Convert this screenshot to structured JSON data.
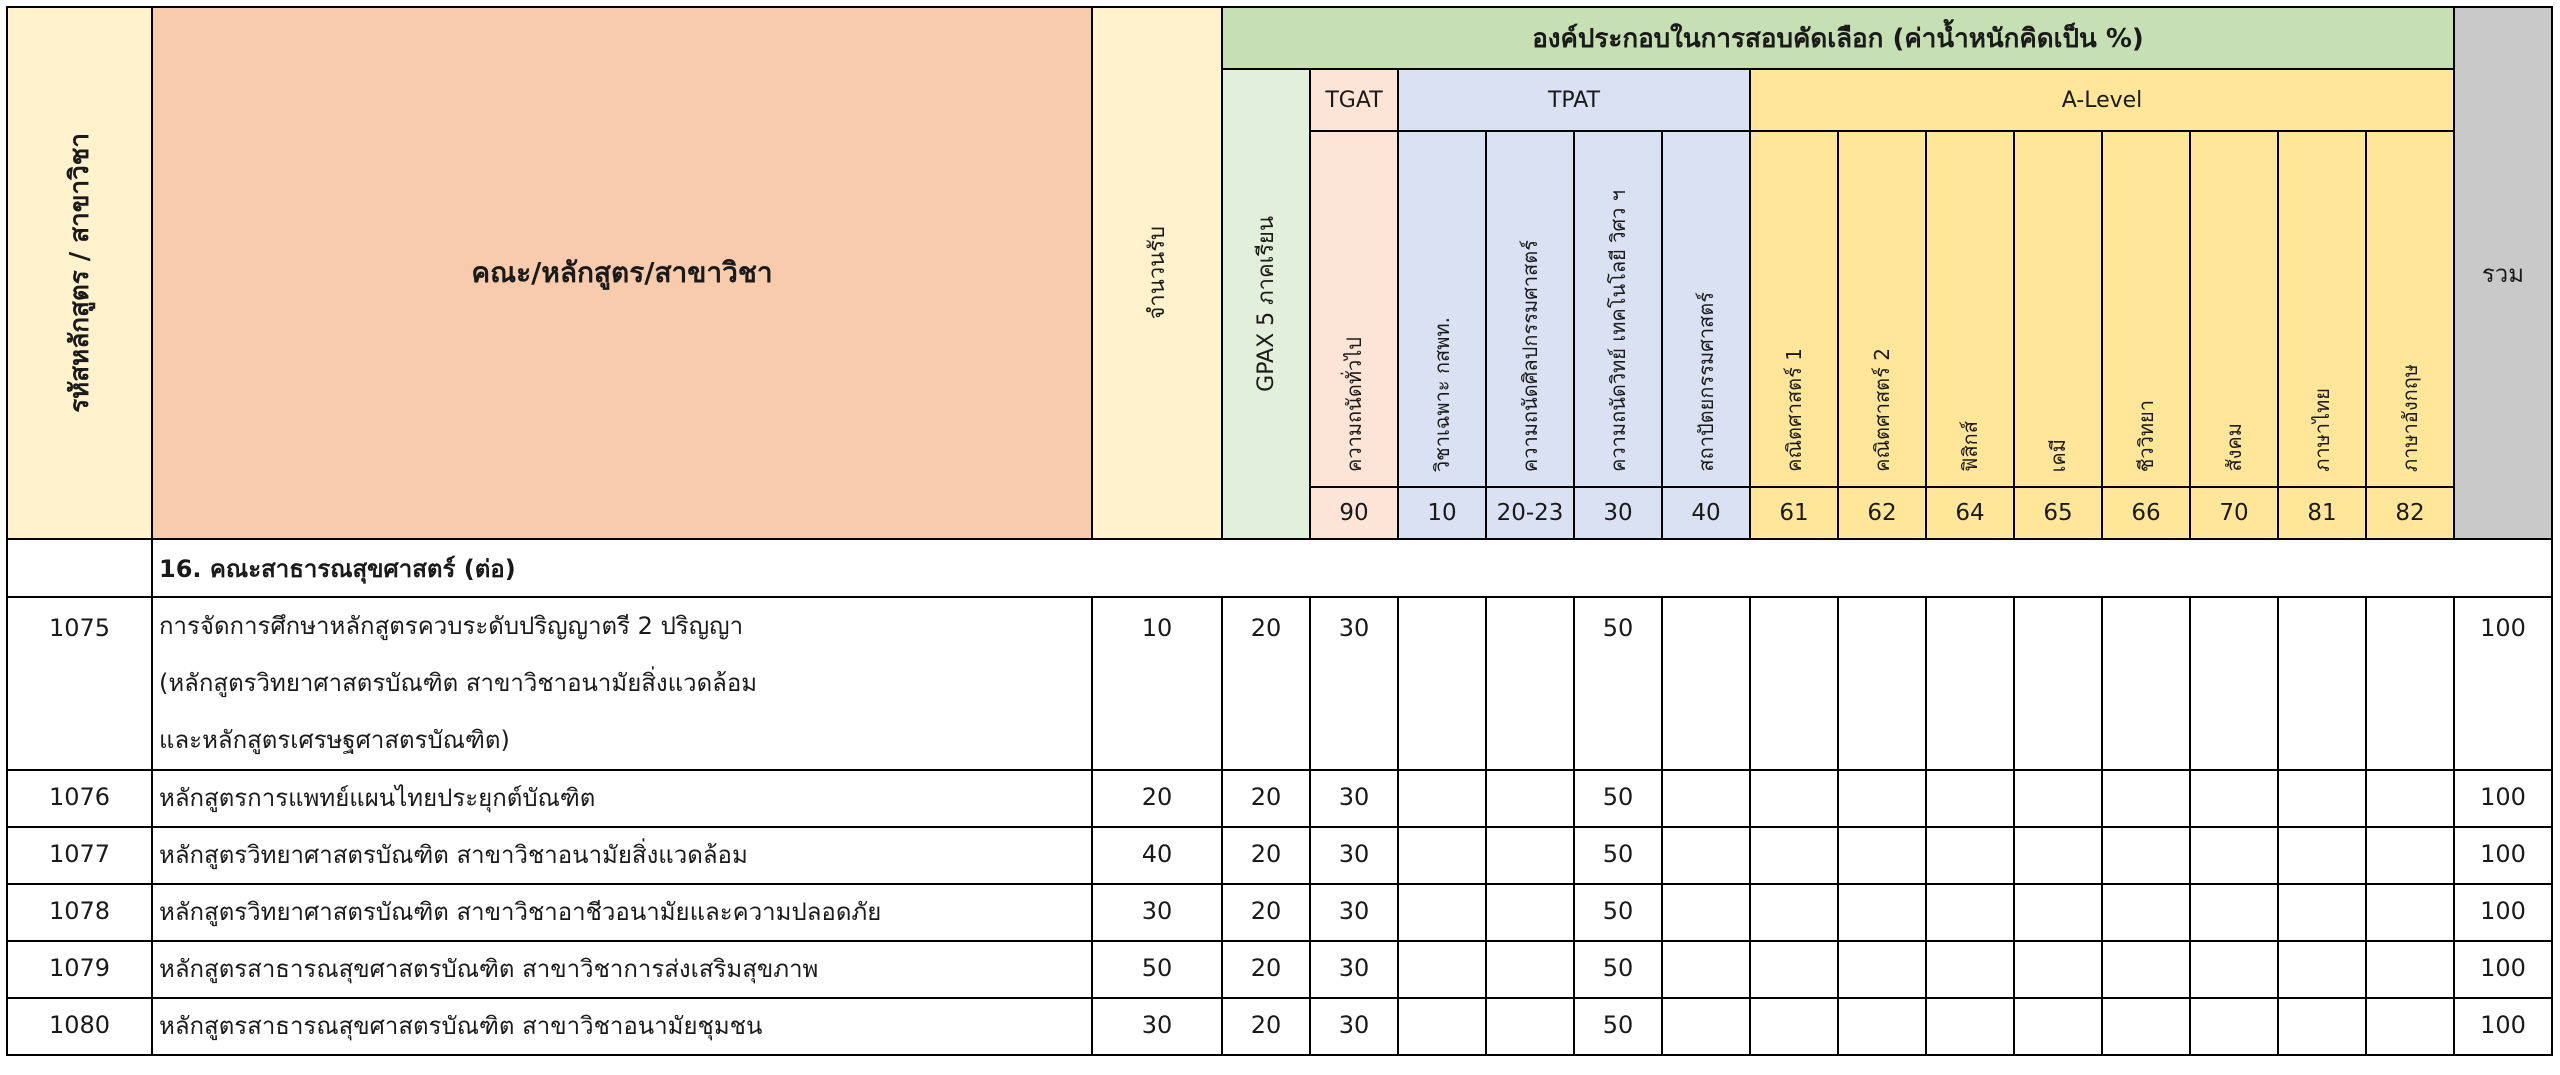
{
  "header": {
    "code_title": "รหัสหลักสูตร / สาขาวิชา",
    "program_title": "คณะ/หลักสูตร/สาขาวิชา",
    "seats_title": "จำนวนรับ",
    "components_title": "องค์ประกอบในการสอบคัดเลือก (ค่าน้ำหนักคิดเป็น %)",
    "gpax_title": "GPAX 5 ภาคเรียน",
    "tgat_title": "TGAT",
    "tpat_title": "TPAT",
    "alevel_title": "A-Level",
    "total_title": "รวม",
    "subjects": [
      {
        "name": "ความถนัดทั่วไป",
        "code": "90"
      },
      {
        "name": "วิชาเฉพาะ กสพท.",
        "code": "10"
      },
      {
        "name": "ความถนัดศิลปกรรมศาสตร์",
        "code": "20-23"
      },
      {
        "name": "ความถนัดวิทย์ เทคโนโลยี วิศว ฯ",
        "code": "30"
      },
      {
        "name": "สถาปัตยกรรมศาสตร์",
        "code": "40"
      },
      {
        "name": "คณิตศาสตร์ 1",
        "code": "61"
      },
      {
        "name": "คณิตศาสตร์ 2",
        "code": "62"
      },
      {
        "name": "ฟิสิกส์",
        "code": "64"
      },
      {
        "name": "เคมี",
        "code": "65"
      },
      {
        "name": "ชีววิทยา",
        "code": "66"
      },
      {
        "name": "สังคม",
        "code": "70"
      },
      {
        "name": "ภาษาไทย",
        "code": "81"
      },
      {
        "name": "ภาษาอังกฤษ",
        "code": "82"
      }
    ]
  },
  "section_title": "16. คณะสาธารณสุขศาสตร์ (ต่อ)",
  "rows": [
    {
      "code": "1075",
      "name_lines": [
        "การจัดการศึกษาหลักสูตรควบระดับปริญญาตรี 2 ปริญญา",
        "(หลักสูตรวิทยาศาสตรบัณฑิต สาขาวิชาอนามัยสิ่งแวดล้อม",
        "และหลักสูตรเศรษฐศาสตรบัณฑิต)"
      ],
      "seats": "10",
      "gpax": "20",
      "tgat": "30",
      "tpat30": "50",
      "total": "100"
    },
    {
      "code": "1076",
      "name_lines": [
        "หลักสูตรการแพทย์แผนไทยประยุกต์บัณฑิต"
      ],
      "seats": "20",
      "gpax": "20",
      "tgat": "30",
      "tpat30": "50",
      "total": "100"
    },
    {
      "code": "1077",
      "name_lines": [
        "หลักสูตรวิทยาศาสตรบัณฑิต สาขาวิชาอนามัยสิ่งแวดล้อม"
      ],
      "seats": "40",
      "gpax": "20",
      "tgat": "30",
      "tpat30": "50",
      "total": "100"
    },
    {
      "code": "1078",
      "name_lines": [
        "หลักสูตรวิทยาศาสตรบัณฑิต สาขาวิชาอาชีวอนามัยและความปลอดภัย"
      ],
      "seats": "30",
      "gpax": "20",
      "tgat": "30",
      "tpat30": "50",
      "total": "100"
    },
    {
      "code": "1079",
      "name_lines": [
        "หลักสูตรสาธารณสุขศาสตรบัณฑิต สาขาวิชาการส่งเสริมสุขภาพ"
      ],
      "seats": "50",
      "gpax": "20",
      "tgat": "30",
      "tpat30": "50",
      "total": "100"
    },
    {
      "code": "1080",
      "name_lines": [
        "หลักสูตรสาธารณสุขศาสตรบัณฑิต สาขาวิชาอนามัยชุมชน"
      ],
      "seats": "30",
      "gpax": "20",
      "tgat": "30",
      "tpat30": "50",
      "total": "100"
    }
  ]
}
